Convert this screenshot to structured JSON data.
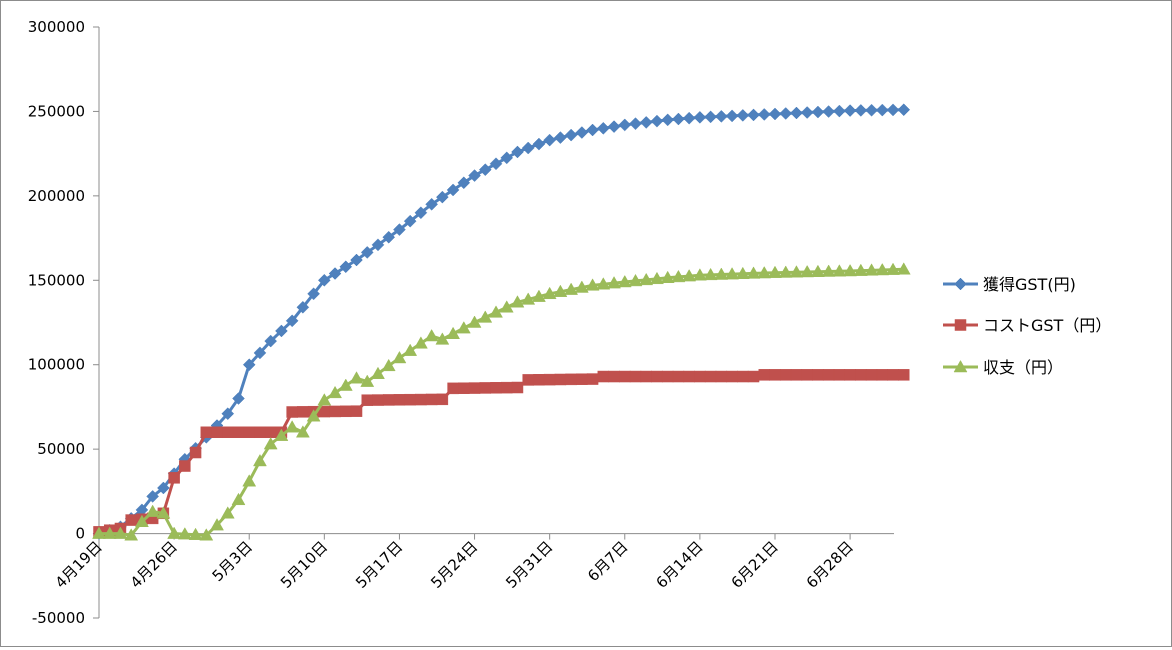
{
  "chart_data": {
    "type": "line",
    "title": "",
    "xlabel": "",
    "ylabel": "",
    "ylim": [
      -50000,
      300000
    ],
    "y_ticks": [
      "-50000",
      "0",
      "50000",
      "100000",
      "150000",
      "200000",
      "250000",
      "300000"
    ],
    "x_range": [
      "2022-04-19",
      "2022-07-03"
    ],
    "x_ticks": [
      {
        "date": "2022-04-19",
        "label": "4月19日"
      },
      {
        "date": "2022-04-26",
        "label": "4月26日"
      },
      {
        "date": "2022-05-03",
        "label": "5月3日"
      },
      {
        "date": "2022-05-10",
        "label": "5月10日"
      },
      {
        "date": "2022-05-17",
        "label": "5月17日"
      },
      {
        "date": "2022-05-24",
        "label": "5月24日"
      },
      {
        "date": "2022-05-31",
        "label": "5月31日"
      },
      {
        "date": "2022-06-07",
        "label": "6月7日"
      },
      {
        "date": "2022-06-14",
        "label": "6月14日"
      },
      {
        "date": "2022-06-21",
        "label": "6月21日"
      },
      {
        "date": "2022-06-28",
        "label": "6月28日"
      }
    ],
    "grid": false,
    "legend_position": "right",
    "series": [
      {
        "name": "獲得GST(円)",
        "color": "#4f81bd",
        "marker": "diamond",
        "points": [
          [
            "2022-04-19",
            0
          ],
          [
            "2022-04-21",
            4000
          ],
          [
            "2022-04-23",
            14000
          ],
          [
            "2022-04-24",
            22000
          ],
          [
            "2022-04-25",
            27000
          ],
          [
            "2022-04-27",
            44000
          ],
          [
            "2022-04-29",
            57000
          ],
          [
            "2022-05-01",
            71000
          ],
          [
            "2022-05-02",
            80000
          ],
          [
            "2022-05-03",
            100000
          ],
          [
            "2022-05-05",
            114000
          ],
          [
            "2022-05-07",
            126000
          ],
          [
            "2022-05-10",
            150000
          ],
          [
            "2022-05-13",
            162000
          ],
          [
            "2022-05-17",
            180000
          ],
          [
            "2022-05-20",
            195000
          ],
          [
            "2022-05-24",
            212000
          ],
          [
            "2022-05-28",
            226000
          ],
          [
            "2022-05-31",
            233000
          ],
          [
            "2022-06-04",
            239000
          ],
          [
            "2022-06-07",
            242000
          ],
          [
            "2022-06-11",
            245000
          ],
          [
            "2022-06-14",
            246500
          ],
          [
            "2022-06-21",
            248500
          ],
          [
            "2022-06-28",
            250500
          ],
          [
            "2022-07-03",
            251000
          ]
        ]
      },
      {
        "name": "コストGST（円）",
        "color": "#c0504d",
        "marker": "square",
        "points": [
          [
            "2022-04-19",
            1000
          ],
          [
            "2022-04-21",
            3000
          ],
          [
            "2022-04-22",
            8000
          ],
          [
            "2022-04-24",
            9000
          ],
          [
            "2022-04-25",
            12000
          ],
          [
            "2022-04-26",
            33000
          ],
          [
            "2022-04-27",
            40000
          ],
          [
            "2022-04-28",
            48000
          ],
          [
            "2022-04-29",
            60000
          ],
          [
            "2022-05-06",
            60000
          ],
          [
            "2022-05-07",
            72000
          ],
          [
            "2022-05-13",
            72500
          ],
          [
            "2022-05-14",
            79000
          ],
          [
            "2022-05-21",
            79500
          ],
          [
            "2022-05-22",
            86000
          ],
          [
            "2022-05-28",
            86500
          ],
          [
            "2022-05-29",
            91000
          ],
          [
            "2022-06-04",
            91500
          ],
          [
            "2022-06-05",
            93000
          ],
          [
            "2022-06-19",
            93000
          ],
          [
            "2022-06-20",
            94000
          ],
          [
            "2022-07-03",
            94000
          ]
        ]
      },
      {
        "name": "収支（円）",
        "color": "#9bbb59",
        "marker": "triangle",
        "points": [
          [
            "2022-04-19",
            0
          ],
          [
            "2022-04-21",
            0
          ],
          [
            "2022-04-22",
            -1000
          ],
          [
            "2022-04-23",
            7000
          ],
          [
            "2022-04-24",
            13000
          ],
          [
            "2022-04-25",
            12000
          ],
          [
            "2022-04-26",
            0
          ],
          [
            "2022-04-29",
            -1000
          ],
          [
            "2022-04-30",
            5000
          ],
          [
            "2022-05-01",
            12000
          ],
          [
            "2022-05-02",
            20000
          ],
          [
            "2022-05-03",
            31000
          ],
          [
            "2022-05-04",
            43000
          ],
          [
            "2022-05-05",
            53000
          ],
          [
            "2022-05-07",
            63000
          ],
          [
            "2022-05-08",
            60000
          ],
          [
            "2022-05-10",
            79000
          ],
          [
            "2022-05-13",
            92000
          ],
          [
            "2022-05-14",
            90000
          ],
          [
            "2022-05-17",
            104000
          ],
          [
            "2022-05-20",
            117000
          ],
          [
            "2022-05-21",
            115000
          ],
          [
            "2022-05-24",
            125000
          ],
          [
            "2022-05-28",
            137000
          ],
          [
            "2022-05-31",
            142000
          ],
          [
            "2022-06-04",
            147000
          ],
          [
            "2022-06-07",
            149000
          ],
          [
            "2022-06-11",
            151500
          ],
          [
            "2022-06-14",
            153000
          ],
          [
            "2022-06-21",
            154500
          ],
          [
            "2022-06-28",
            155500
          ],
          [
            "2022-07-03",
            156500
          ]
        ]
      }
    ]
  }
}
